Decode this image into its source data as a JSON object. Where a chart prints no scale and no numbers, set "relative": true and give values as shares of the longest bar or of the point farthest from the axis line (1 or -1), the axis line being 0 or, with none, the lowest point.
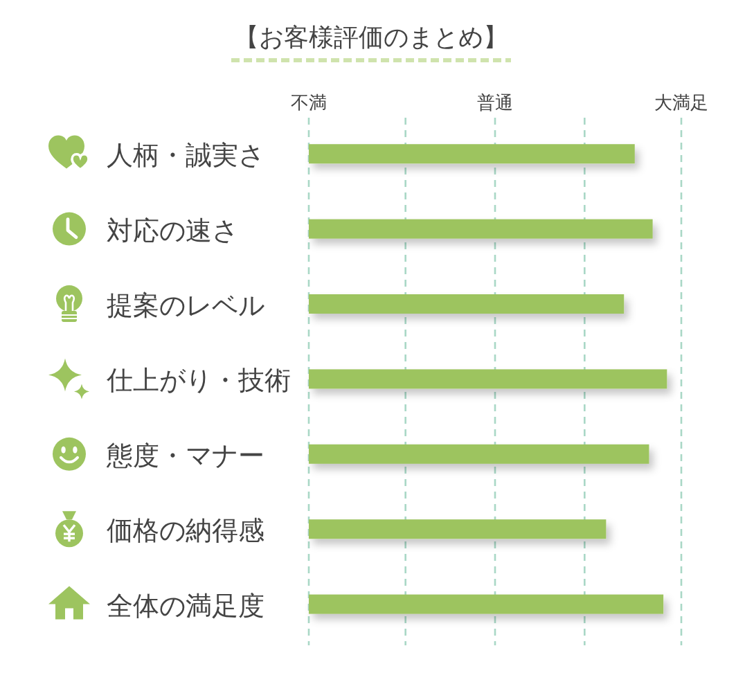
{
  "chart_data": {
    "type": "bar",
    "orientation": "horizontal",
    "relative": true,
    "title": "【お客様評価のまとめ】",
    "categories": [
      "人柄・誠実さ",
      "対応の速さ",
      "提案のレベル",
      "仕上がり・技術",
      "態度・マナー",
      "価格の納得感",
      "全体の満足度"
    ],
    "values": [
      0.91,
      0.96,
      0.88,
      1,
      0.95,
      0.83,
      0.99
    ],
    "color": "#9dc45f",
    "ref_lines": [
      {
        "axis": "x",
        "value": 0,
        "label": "不満",
        "color": "#a9d8c6",
        "line_style": "dashed"
      },
      {
        "axis": "x",
        "value": 0.27,
        "label": null,
        "color": "#a9d8c6",
        "line_style": "dashed"
      },
      {
        "axis": "x",
        "value": 0.52,
        "label": "普通",
        "color": "#a9d8c6",
        "line_style": "dashed"
      },
      {
        "axis": "x",
        "value": 0.77,
        "label": null,
        "color": "#a9d8c6",
        "line_style": "dashed"
      },
      {
        "axis": "x",
        "value": 1.04,
        "label": "大満足",
        "color": "#a9d8c6",
        "line_style": "dashed"
      }
    ]
  }
}
